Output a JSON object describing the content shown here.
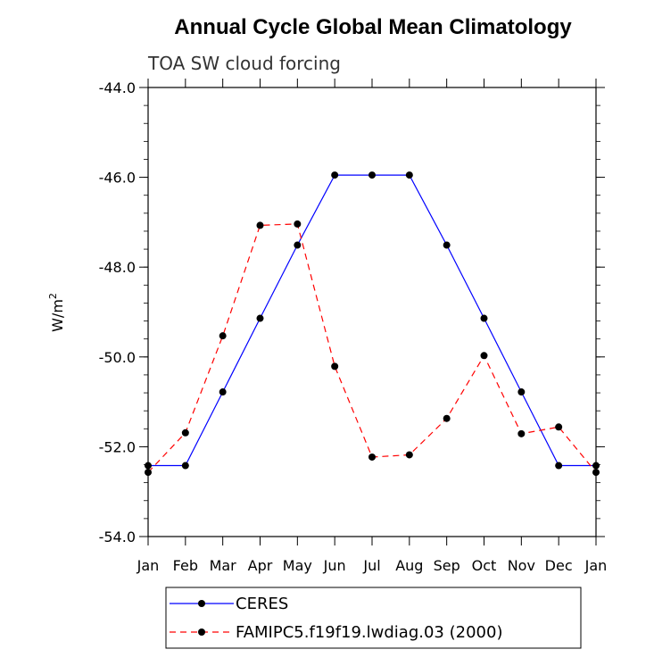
{
  "chart_data": {
    "type": "line",
    "title": "Annual Cycle Global Mean Climatology",
    "subtitle": "TOA SW cloud forcing",
    "ylabel": "W/m",
    "ylabel_superscript": "2",
    "ylim": [
      -54.0,
      -44.0
    ],
    "yticks": [
      -44.0,
      -46.0,
      -48.0,
      -50.0,
      -52.0,
      -54.0
    ],
    "ytick_labels": [
      "-44.0",
      "-46.0",
      "-48.0",
      "-50.0",
      "-52.0",
      "-54.0"
    ],
    "categories": [
      "Jan",
      "Feb",
      "Mar",
      "Apr",
      "May",
      "Jun",
      "Jul",
      "Aug",
      "Sep",
      "Oct",
      "Nov",
      "Dec",
      "Jan"
    ],
    "series": [
      {
        "name": "CERES",
        "color": "#0000ff",
        "dash": "solid",
        "values": [
          -52.42,
          -52.42,
          -50.78,
          -49.14,
          -47.51,
          -45.95,
          -45.95,
          -45.95,
          -47.51,
          -49.14,
          -50.78,
          -52.42,
          -52.42
        ]
      },
      {
        "name": "FAMIPC5.f19f19.lwdiag.03 (2000)",
        "color": "#ff0000",
        "dash": "dashed",
        "values": [
          -52.57,
          -51.69,
          -49.53,
          -47.07,
          -47.04,
          -50.21,
          -52.23,
          -52.18,
          -51.37,
          -49.97,
          -51.71,
          -51.56,
          -52.57
        ]
      }
    ],
    "legend_position": "bottom",
    "grid": false
  }
}
